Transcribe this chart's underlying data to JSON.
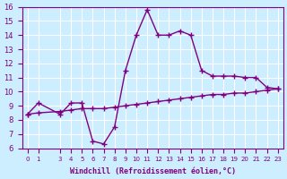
{
  "xlabel": "Windchill (Refroidissement éolien,°C)",
  "x": [
    0,
    1,
    3,
    4,
    5,
    6,
    7,
    8,
    9,
    10,
    11,
    12,
    13,
    14,
    15,
    16,
    17,
    18,
    19,
    20,
    21,
    22,
    23
  ],
  "line1_y": [
    8.4,
    9.2,
    8.4,
    9.2,
    9.2,
    6.5,
    6.3,
    7.5,
    11.5,
    14.0,
    15.8,
    14.0,
    14.0,
    14.3,
    14.0,
    11.5,
    11.1,
    11.1,
    11.1,
    11.0,
    11.0,
    10.3,
    10.2
  ],
  "line2_y": [
    8.4,
    8.5,
    8.6,
    8.7,
    8.8,
    8.8,
    8.8,
    8.9,
    9.0,
    9.1,
    9.2,
    9.3,
    9.4,
    9.5,
    9.6,
    9.7,
    9.8,
    9.8,
    9.9,
    9.9,
    10.0,
    10.1,
    10.2
  ],
  "line_color": "#800080",
  "ylim": [
    6,
    16
  ],
  "yticks": [
    6,
    7,
    8,
    9,
    10,
    11,
    12,
    13,
    14,
    15,
    16
  ],
  "xtick_positions": [
    0,
    1,
    3,
    4,
    5,
    6,
    7,
    8,
    9,
    10,
    11,
    12,
    13,
    14,
    15,
    16,
    17,
    18,
    19,
    20,
    21,
    22,
    23
  ],
  "xtick_labels": [
    "0",
    "1",
    "3",
    "4",
    "5",
    "6",
    "7",
    "8",
    "9",
    "10",
    "11",
    "12",
    "13",
    "14",
    "15",
    "16",
    "17",
    "18",
    "19",
    "20",
    "21",
    "22",
    "23"
  ],
  "background_color": "#cceeff",
  "grid_color": "#ffffff",
  "marker": "+"
}
